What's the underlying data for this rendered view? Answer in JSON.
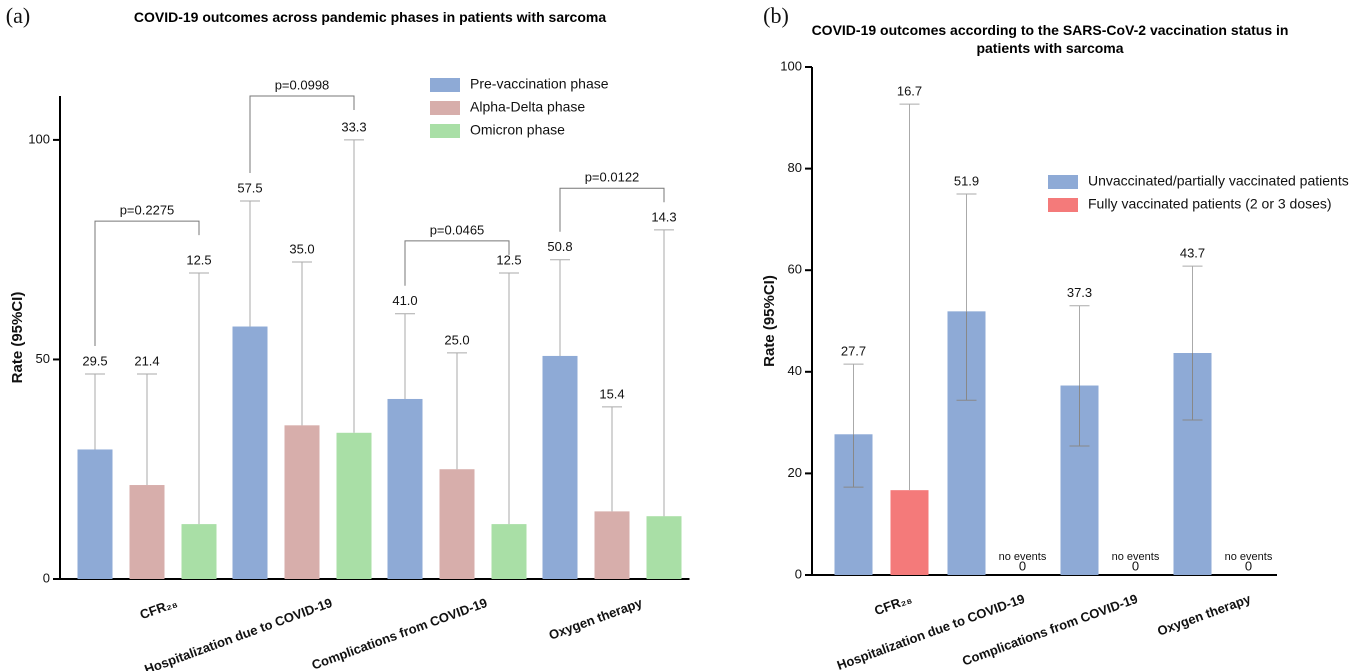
{
  "chart_data": [
    {
      "type": "bar",
      "panel": "(a)",
      "title": "COVID-19 outcomes across pandemic phases in patients with sarcoma",
      "ylabel": "Rate (95%CI)",
      "categories": [
        "CFR₂₈",
        "Hospitalization due to COVID-19",
        "Complications from COVID-19",
        "Oxygen therapy"
      ],
      "series": [
        {
          "name": "Pre-vaccination phase",
          "color": "#8eaad6",
          "values": [
            29.5,
            57.5,
            41.0,
            50.8
          ],
          "value_labels": [
            "29.5",
            "57.5",
            "41.0",
            "50.8"
          ],
          "ci_high": [
            46.7,
            86.1,
            60.4,
            72.7
          ]
        },
        {
          "name": "Alpha-Delta phase",
          "color": "#d7aeab",
          "values": [
            21.4,
            35.0,
            25.0,
            15.4
          ],
          "value_labels": [
            "21.4",
            "35.0",
            "25.0",
            "15.4"
          ],
          "ci_high": [
            46.7,
            72.2,
            51.5,
            39.2
          ]
        },
        {
          "name": "Omicron phase",
          "color": "#a9dfa6",
          "values": [
            12.5,
            33.3,
            12.5,
            14.3
          ],
          "value_labels": [
            "12.5",
            "33.3",
            "12.5",
            "14.3"
          ],
          "ci_high": [
            69.7,
            100,
            69.7,
            79.5
          ]
        }
      ],
      "brackets": [
        {
          "label": "p=0.2275",
          "y": 81.5
        },
        {
          "label": "p=0.0998",
          "y": 110
        },
        {
          "label": "p=0.0465",
          "y": 77
        },
        {
          "label": "p=0.0122",
          "y": 89
        }
      ],
      "ylim": [
        0,
        110
      ],
      "yticks": [
        0,
        50,
        100
      ],
      "legend": "upper right"
    },
    {
      "type": "bar",
      "panel": "(b)",
      "title": "COVID-19 outcomes according to the SARS-CoV-2 vaccination status in patients with sarcoma",
      "ylabel": "Rate (95%CI)",
      "categories": [
        "CFR₂₈",
        "Hospitalization due to COVID-19",
        "Complications from COVID-19",
        "Oxygen therapy"
      ],
      "series": [
        {
          "name": "Unvaccinated/partially vaccinated patients",
          "color": "#8eaad6",
          "values": [
            27.7,
            51.9,
            37.3,
            43.7
          ],
          "ci_low": [
            17.3,
            34.4,
            25.4,
            30.5
          ],
          "ci_high": [
            41.5,
            75.0,
            53.0,
            60.8
          ]
        },
        {
          "name": "Fully vaccinated patients (2 or 3 doses)",
          "color": "#f47a7a",
          "values": [
            16.7,
            0,
            0,
            0
          ],
          "ci_low": [
            null,
            null,
            null,
            null
          ],
          "ci_high": [
            92.7,
            null,
            null,
            null
          ],
          "notes": [
            null,
            "no events",
            "no events",
            "no events"
          ]
        }
      ],
      "ylim": [
        0,
        100
      ],
      "yticks": [
        0,
        20,
        40,
        60,
        80,
        100
      ],
      "legend": "right"
    }
  ]
}
